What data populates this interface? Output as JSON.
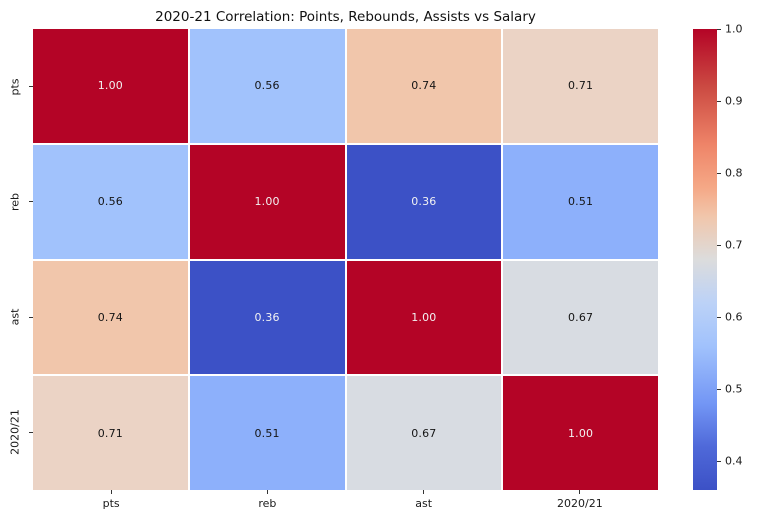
{
  "figure": {
    "background": "#ffffff",
    "text_color": "#1a1a1a"
  },
  "chart_data": {
    "type": "heatmap",
    "title": "2020-21 Correlation: Points, Rebounds, Assists vs Salary",
    "categories": [
      "pts",
      "reb",
      "ast",
      "2020/21"
    ],
    "matrix": [
      [
        1.0,
        0.56,
        0.74,
        0.71
      ],
      [
        0.56,
        1.0,
        0.36,
        0.51
      ],
      [
        0.74,
        0.36,
        1.0,
        0.67
      ],
      [
        0.71,
        0.51,
        0.67,
        1.0
      ]
    ],
    "cell_labels": [
      [
        "1.00",
        "0.56",
        "0.74",
        "0.71"
      ],
      [
        "0.56",
        "1.00",
        "0.36",
        "0.51"
      ],
      [
        "0.74",
        "0.36",
        "1.00",
        "0.67"
      ],
      [
        "0.71",
        "0.51",
        "0.67",
        "1.00"
      ]
    ],
    "cell_colors": [
      [
        "#b40426",
        "#a1c2fc",
        "#f1c6ab",
        "#ebd3c5"
      ],
      [
        "#a1c2fc",
        "#b40426",
        "#3c51c6",
        "#8db0fb"
      ],
      [
        "#f1c6ab",
        "#3c51c6",
        "#b40426",
        "#d8dce2"
      ],
      [
        "#ebd3c5",
        "#8db0fb",
        "#d8dce2",
        "#b40426"
      ]
    ],
    "annot_text_dark": "#151515",
    "annot_text_light": "#f2f2f2",
    "colormap": "coolwarm",
    "vmin": 0.36,
    "vmax": 1.0,
    "gridline_color": "#ffffff",
    "colorbar": {
      "tick_labels": [
        "1.0",
        "0.9",
        "0.8",
        "0.7",
        "0.6",
        "0.5",
        "0.4"
      ],
      "tick_values": [
        1.0,
        0.9,
        0.8,
        0.7,
        0.6,
        0.5,
        0.4
      ],
      "gradient_stops": [
        {
          "v": 1.0,
          "c": "#b40426"
        },
        {
          "v": 0.92,
          "c": "#cb4a42"
        },
        {
          "v": 0.84,
          "c": "#ee8468"
        },
        {
          "v": 0.78,
          "c": "#f5a886"
        },
        {
          "v": 0.74,
          "c": "#f1c6ab"
        },
        {
          "v": 0.68,
          "c": "#dcdcdc"
        },
        {
          "v": 0.62,
          "c": "#bcd2f7"
        },
        {
          "v": 0.56,
          "c": "#a1c2fc"
        },
        {
          "v": 0.48,
          "c": "#7396f5"
        },
        {
          "v": 0.42,
          "c": "#4f69d9"
        },
        {
          "v": 0.36,
          "c": "#3c51c6"
        }
      ]
    }
  }
}
